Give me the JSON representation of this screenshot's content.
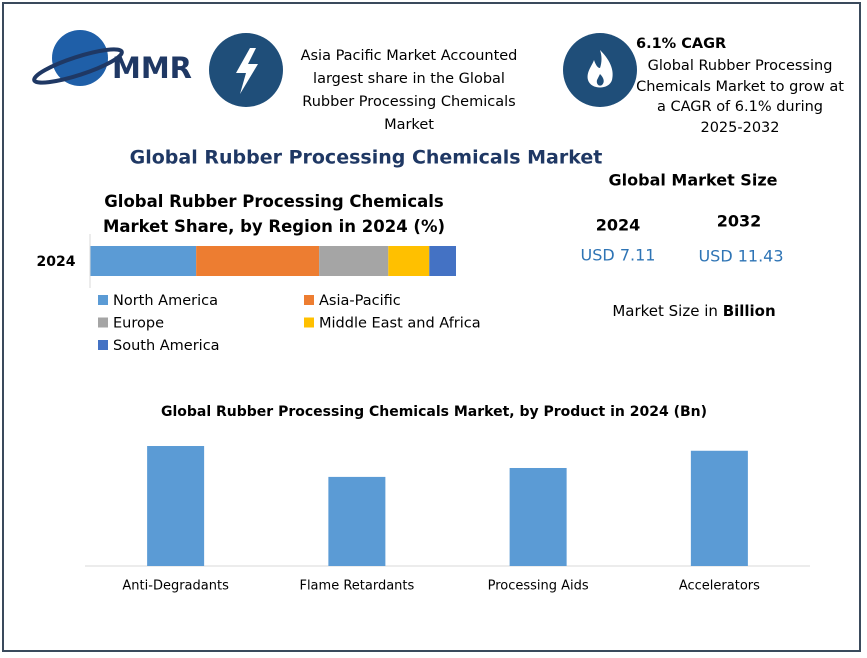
{
  "header": {
    "logo": "MMR",
    "card1": "Asia Pacific Market Accounted largest share in the Global Rubber Processing Chemicals Market",
    "card2_title": "6.1% CAGR",
    "card2": "Global Rubber Processing Chemicals Market to grow at a CAGR of 6.1% during 2025-2032"
  },
  "title": "Global Rubber Processing Chemicals Market",
  "market_size": {
    "title": "Global Market Size",
    "years": [
      "2024",
      "2032"
    ],
    "values": [
      "USD 7.11",
      "USD 11.43"
    ],
    "unit_text": "Market Size in",
    "unit": "Billion"
  },
  "chart_data": [
    {
      "type": "stacked-bar-h",
      "title": "Global Rubber Processing Chemicals Market Share, by Region in 2024 (%)",
      "categories": [
        "2024"
      ],
      "series": [
        {
          "name": "North America",
          "color": "#5b9bd5",
          "values": [
            29
          ]
        },
        {
          "name": "Asia-Pacific",
          "color": "#ed7d31",
          "values": [
            33.6
          ]
        },
        {
          "name": "Europe",
          "color": "#a5a5a5",
          "values": [
            18.9
          ]
        },
        {
          "name": "Middle East and Africa",
          "color": "#ffc000",
          "values": [
            11.2
          ]
        },
        {
          "name": "South America",
          "color": "#4472c4",
          "values": [
            7.3
          ]
        }
      ]
    },
    {
      "type": "bar",
      "title": "Global Rubber Processing Chemicals Market, by Product  in 2024 (Bn)",
      "categories": [
        "Anti-Degradants",
        "Flame Retardants",
        "Processing Aids",
        "Accelerators"
      ],
      "values": [
        2.02,
        1.5,
        1.65,
        1.94
      ],
      "color": "#5b9bd5"
    }
  ]
}
